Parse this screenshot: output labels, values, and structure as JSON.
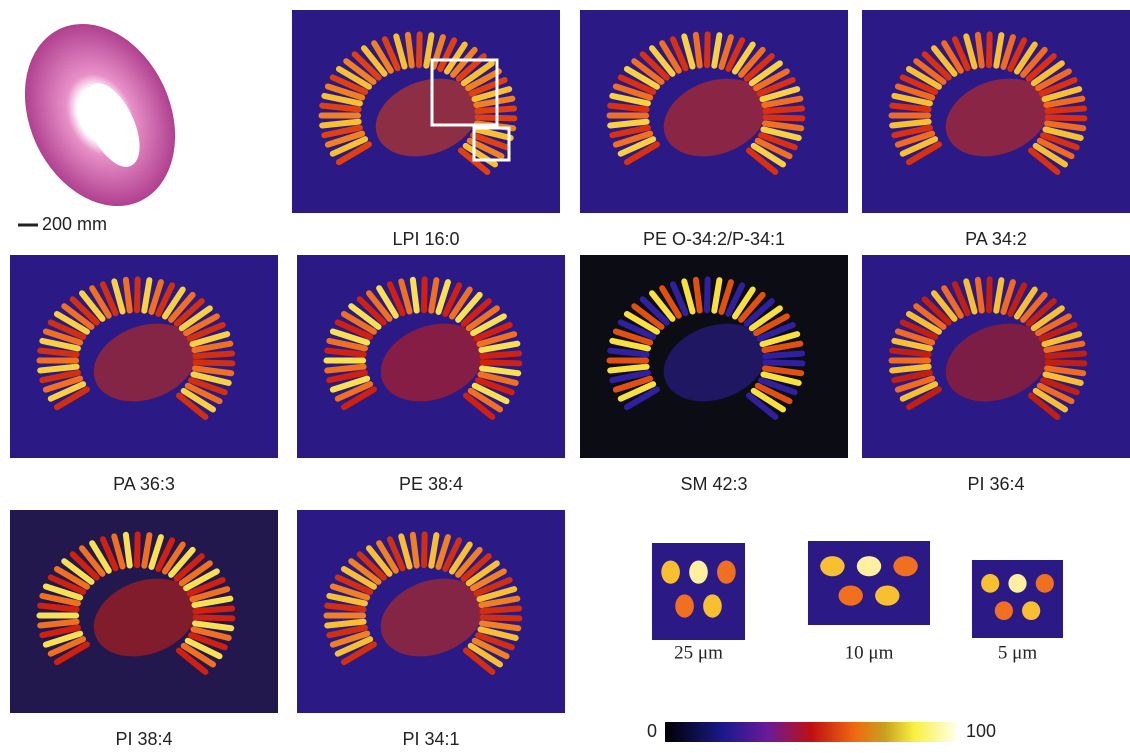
{
  "figure": {
    "he_scale_bar": "200 mm",
    "panels": [
      {
        "label": "LPI 16:0"
      },
      {
        "label": "PE O-34:2/P-34:1"
      },
      {
        "label": "PA 34:2"
      },
      {
        "label": "PA 36:3"
      },
      {
        "label": "PE 38:4"
      },
      {
        "label": "SM 42:3"
      },
      {
        "label": "PI 36:4"
      },
      {
        "label": "PI 38:4"
      },
      {
        "label": "PI 34:1"
      }
    ],
    "zooms": [
      "25 μm",
      "10 μm",
      "5 μm"
    ],
    "colorbar": {
      "min": "0",
      "max": "100"
    }
  }
}
